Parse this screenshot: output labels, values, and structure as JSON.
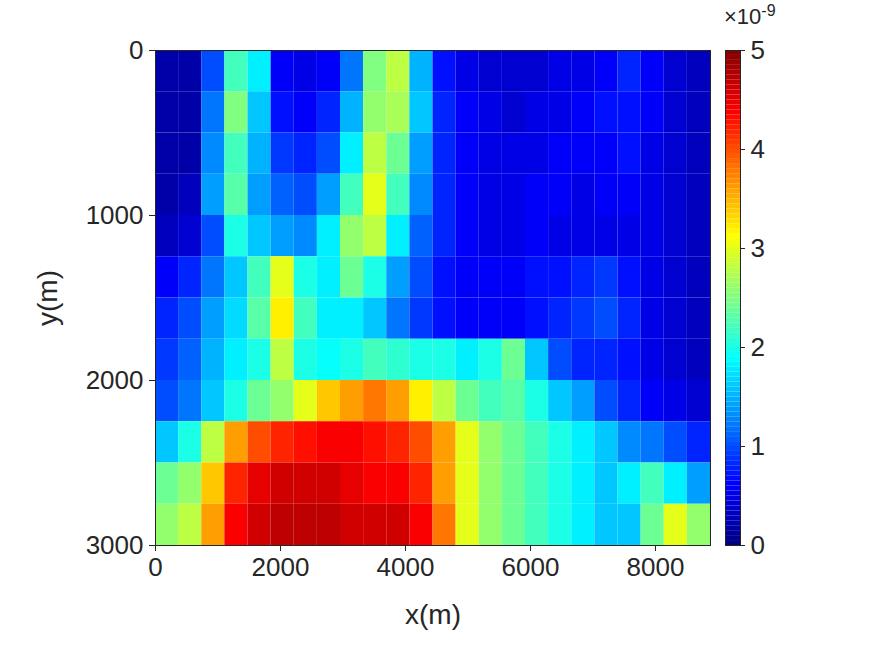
{
  "chart_data": {
    "type": "heatmap",
    "xlabel": "x(m)",
    "ylabel": "y(m)",
    "xlim": [
      0,
      8880
    ],
    "ylim": [
      0,
      3000
    ],
    "xticks": [
      0,
      2000,
      4000,
      6000,
      8000
    ],
    "yticks": [
      0,
      1000,
      2000,
      3000
    ],
    "color": "jet",
    "x": [
      0,
      370,
      740,
      1110,
      1480,
      1850,
      2220,
      2590,
      2960,
      3330,
      3700,
      4070,
      4440,
      4810,
      5180,
      5550,
      5920,
      6290,
      6660,
      7030,
      7400,
      7770,
      8140,
      8510,
      8880
    ],
    "y": [
      0,
      250,
      500,
      750,
      1000,
      1250,
      1500,
      1750,
      2000,
      2250,
      2500,
      2750,
      3000
    ],
    "values": [
      [
        0.2,
        0.2,
        1.0,
        2.2,
        1.8,
        0.6,
        0.5,
        0.6,
        1.2,
        2.5,
        2.8,
        1.5,
        0.7,
        0.5,
        0.4,
        0.4,
        0.4,
        0.5,
        0.5,
        0.6,
        0.8,
        0.6,
        0.4,
        0.3
      ],
      [
        0.2,
        0.2,
        1.2,
        2.5,
        1.6,
        0.7,
        0.6,
        0.8,
        1.5,
        2.6,
        2.7,
        1.6,
        0.8,
        0.6,
        0.5,
        0.4,
        0.5,
        0.5,
        0.6,
        0.7,
        0.7,
        0.6,
        0.4,
        0.3
      ],
      [
        0.2,
        0.2,
        1.3,
        2.2,
        1.5,
        0.9,
        0.8,
        1.0,
        1.8,
        2.8,
        2.4,
        1.4,
        0.8,
        0.6,
        0.5,
        0.5,
        0.5,
        0.6,
        0.6,
        0.6,
        0.7,
        0.5,
        0.4,
        0.3
      ],
      [
        0.2,
        0.3,
        1.4,
        2.3,
        1.4,
        1.1,
        1.0,
        1.4,
        2.2,
        3.0,
        2.2,
        1.3,
        0.8,
        0.6,
        0.5,
        0.5,
        0.6,
        0.6,
        0.5,
        0.6,
        0.6,
        0.5,
        0.4,
        0.3
      ],
      [
        0.3,
        0.4,
        1.0,
        2.0,
        1.6,
        1.4,
        1.3,
        1.8,
        2.6,
        2.8,
        1.8,
        1.1,
        0.8,
        0.6,
        0.5,
        0.5,
        0.6,
        0.5,
        0.5,
        0.5,
        0.5,
        0.5,
        0.4,
        0.3
      ],
      [
        0.6,
        0.8,
        1.2,
        1.6,
        2.2,
        3.0,
        2.0,
        1.8,
        2.4,
        2.0,
        1.4,
        1.0,
        0.7,
        0.6,
        0.6,
        0.6,
        0.7,
        0.7,
        0.8,
        0.9,
        0.7,
        0.5,
        0.4,
        0.3
      ],
      [
        0.8,
        1.0,
        1.4,
        1.7,
        2.3,
        3.2,
        2.2,
        1.8,
        1.8,
        1.6,
        1.2,
        0.9,
        0.7,
        0.6,
        0.6,
        0.6,
        0.7,
        0.8,
        0.9,
        1.0,
        0.8,
        0.5,
        0.4,
        0.3
      ],
      [
        0.9,
        1.1,
        1.5,
        1.8,
        2.0,
        2.8,
        2.0,
        1.9,
        2.0,
        2.2,
        2.1,
        2.0,
        2.0,
        1.8,
        2.0,
        2.4,
        1.6,
        1.0,
        0.8,
        0.8,
        0.7,
        0.5,
        0.4,
        0.3
      ],
      [
        1.0,
        1.2,
        1.6,
        2.0,
        2.4,
        2.6,
        3.0,
        3.4,
        3.6,
        3.8,
        3.6,
        3.2,
        2.8,
        2.4,
        2.2,
        2.3,
        2.0,
        1.6,
        1.4,
        1.0,
        0.8,
        0.6,
        0.5,
        0.4
      ],
      [
        1.6,
        2.0,
        2.8,
        3.6,
        4.0,
        4.2,
        4.3,
        4.4,
        4.4,
        4.3,
        4.2,
        4.0,
        3.6,
        3.0,
        2.6,
        2.4,
        2.2,
        2.0,
        1.8,
        1.6,
        1.3,
        1.2,
        1.0,
        0.8
      ],
      [
        2.4,
        2.6,
        3.4,
        4.2,
        4.5,
        4.6,
        4.6,
        4.6,
        4.5,
        4.4,
        4.4,
        4.2,
        3.6,
        3.0,
        2.6,
        2.4,
        2.2,
        2.0,
        1.8,
        1.6,
        1.8,
        2.2,
        1.8,
        1.4
      ],
      [
        2.6,
        2.8,
        3.6,
        4.4,
        4.6,
        4.7,
        4.7,
        4.7,
        4.6,
        4.6,
        4.6,
        4.4,
        3.8,
        3.0,
        2.6,
        2.4,
        2.2,
        2.0,
        1.8,
        1.6,
        1.6,
        2.4,
        3.0,
        2.6
      ]
    ],
    "colorbar": {
      "range": [
        0,
        5
      ],
      "ticks": [
        0,
        1,
        2,
        3,
        4,
        5
      ],
      "label": {
        "base": "×10",
        "exponent": "-9"
      }
    }
  }
}
